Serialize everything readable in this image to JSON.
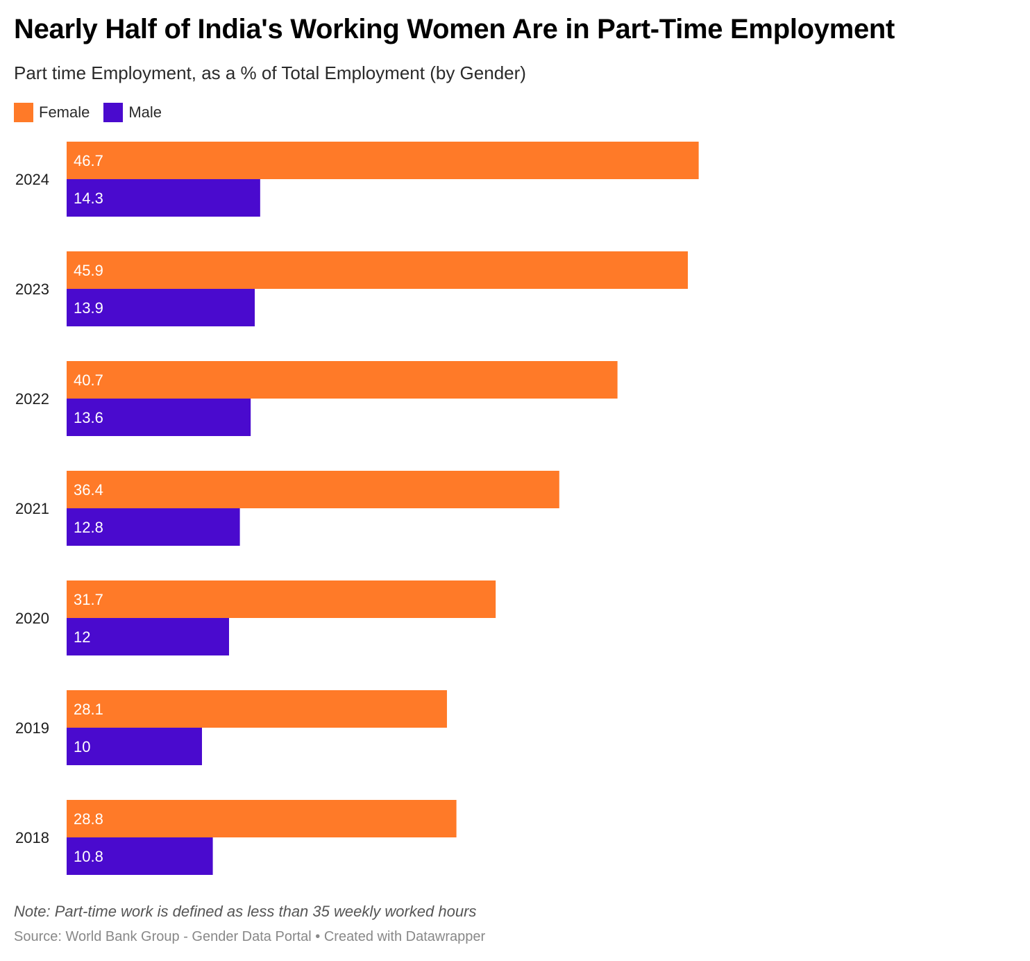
{
  "header": {
    "title": "Nearly Half of India's Working Women Are in Part-Time Employment",
    "subtitle": "Part time Employment, as a % of Total Employment (by Gender)"
  },
  "legend": {
    "female_label": "Female",
    "male_label": "Male"
  },
  "colors": {
    "female": "#ff7a28",
    "male": "#4a0ace"
  },
  "footer": {
    "note": "Note: Part-time work is defined as less than 35 weekly worked hours",
    "source": "Source: World Bank Group - Gender Data Portal • Created with Datawrapper"
  },
  "chart_data": {
    "type": "bar",
    "orientation": "horizontal",
    "categories": [
      "2024",
      "2023",
      "2022",
      "2021",
      "2020",
      "2019",
      "2018"
    ],
    "series": [
      {
        "name": "Female",
        "values": [
          46.7,
          45.9,
          40.7,
          36.4,
          31.7,
          28.1,
          28.8
        ],
        "labels": [
          "46.7",
          "45.9",
          "40.7",
          "36.4",
          "31.7",
          "28.1",
          "28.8"
        ]
      },
      {
        "name": "Male",
        "values": [
          14.3,
          13.9,
          13.6,
          12.8,
          12,
          10,
          10.8
        ],
        "labels": [
          "14.3",
          "13.9",
          "13.6",
          "12.8",
          "12",
          "10",
          "10.8"
        ]
      }
    ],
    "xlim": [
      0,
      70
    ],
    "grid": false,
    "legend_position": "top-left"
  }
}
